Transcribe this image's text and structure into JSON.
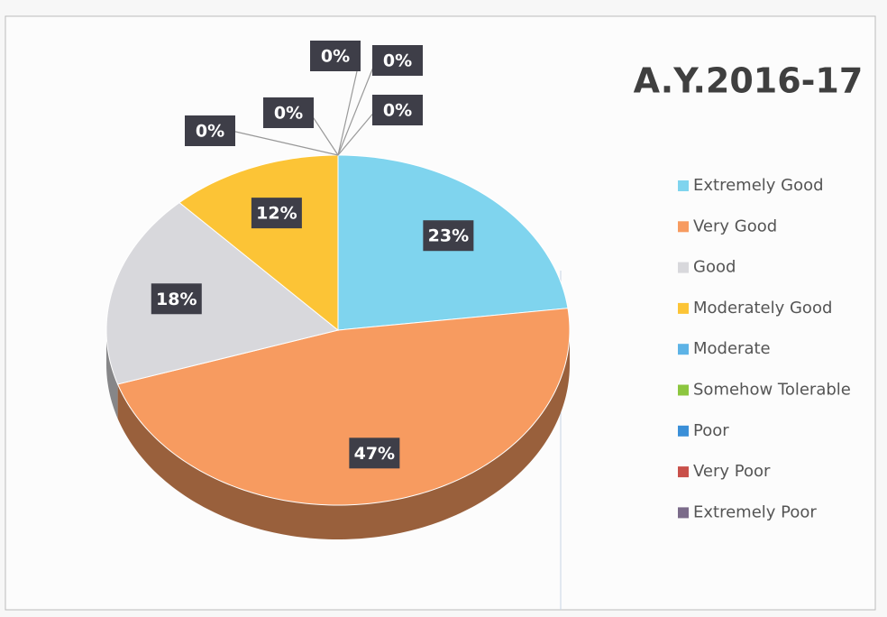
{
  "chart_data": {
    "type": "pie",
    "title": "A.Y.2016-17",
    "categories": [
      "Extremely Good",
      "Very Good",
      "Good",
      "Moderately Good",
      "Moderate",
      "Somehow Tolerable",
      "Poor",
      "Very Poor",
      "Extremely Poor"
    ],
    "values": [
      23,
      47,
      18,
      12,
      0,
      0,
      0,
      0,
      0
    ],
    "value_labels": [
      "23%",
      "47%",
      "18%",
      "12%",
      "0%",
      "0%",
      "0%",
      "0%",
      "0%"
    ],
    "colors": [
      "#7fd4ee",
      "#f79b60",
      "#d8d8dc",
      "#fcc436",
      "#5db3e6",
      "#8cc63f",
      "#3a8fd8",
      "#c9504a",
      "#7b6b8a"
    ],
    "legend": "right"
  }
}
